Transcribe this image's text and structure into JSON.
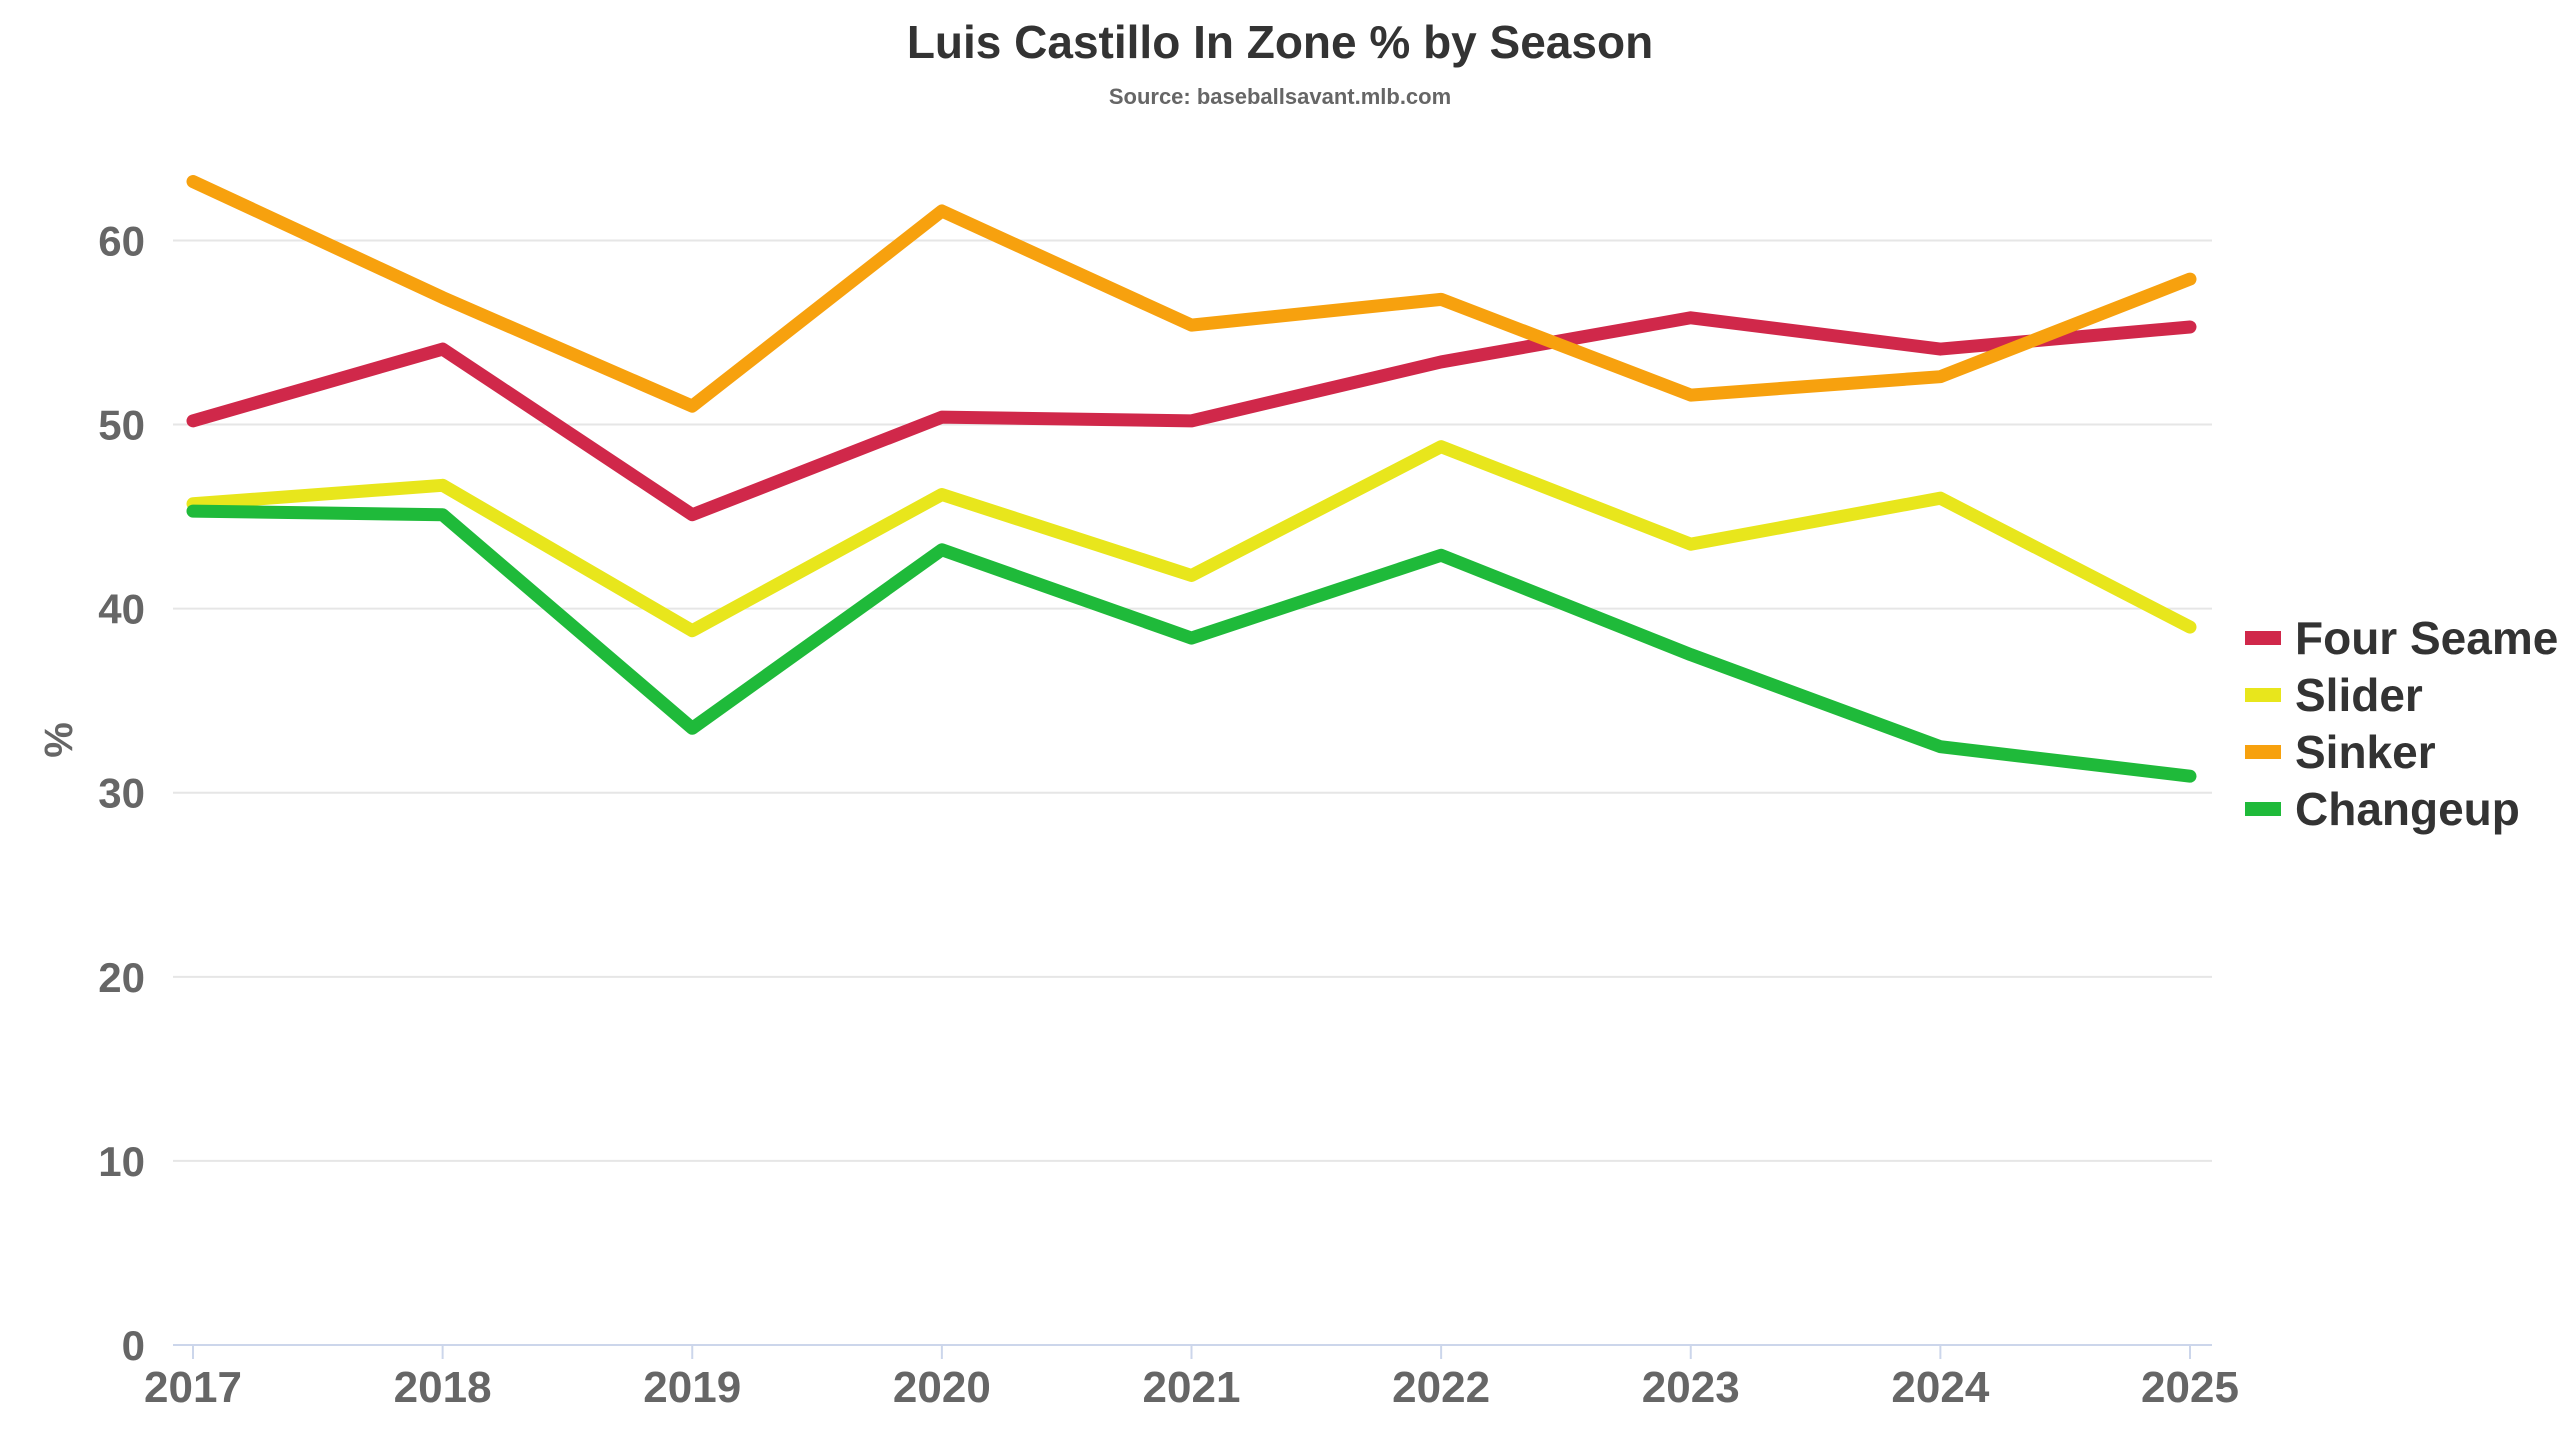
{
  "chart_data": {
    "type": "line",
    "title": "Luis Castillo In Zone % by Season",
    "subtitle": "Source: baseballsavant.mlb.com",
    "xlabel": "",
    "ylabel": "%",
    "x": [
      "2017",
      "2018",
      "2019",
      "2020",
      "2021",
      "2022",
      "2023",
      "2024",
      "2025"
    ],
    "ylim": [
      0,
      66
    ],
    "yticks": [
      "0",
      "10",
      "20",
      "30",
      "40",
      "50",
      "60"
    ],
    "grid": true,
    "legend_position": "right",
    "series": [
      {
        "name": "Four Seamer",
        "color": "#d0284a",
        "values": [
          50.2,
          54.1,
          45.1,
          50.4,
          50.2,
          53.4,
          55.8,
          54.1,
          55.3
        ]
      },
      {
        "name": "Slider",
        "color": "#e8e61c",
        "values": [
          45.7,
          46.7,
          38.8,
          46.2,
          41.8,
          48.8,
          43.5,
          46.0,
          39.0
        ]
      },
      {
        "name": "Sinker",
        "color": "#f7a10e",
        "values": [
          63.2,
          56.9,
          51.0,
          61.6,
          55.4,
          56.8,
          51.6,
          52.6,
          57.9
        ]
      },
      {
        "name": "Changeup",
        "color": "#1fba3a",
        "values": [
          45.3,
          45.1,
          33.5,
          43.2,
          38.4,
          42.9,
          37.5,
          32.5,
          30.9
        ]
      }
    ]
  }
}
